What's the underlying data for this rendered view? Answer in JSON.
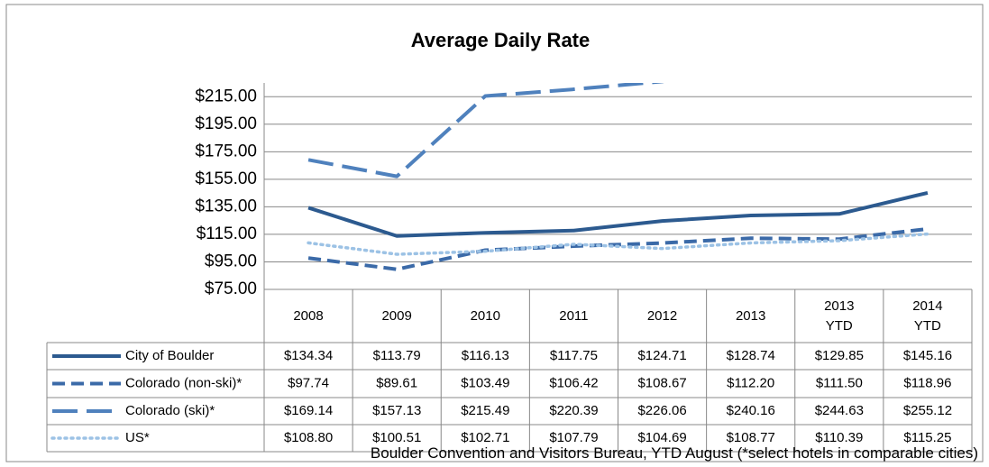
{
  "chart_data": {
    "type": "line",
    "title": "Average Daily Rate",
    "categories": [
      "2008",
      "2009",
      "2010",
      "2011",
      "2012",
      "2013",
      "2013\nYTD",
      "2014\nYTD"
    ],
    "ylim": [
      75,
      225
    ],
    "yticks": [
      {
        "value": 75,
        "label": "$75.00"
      },
      {
        "value": 95,
        "label": "$95.00"
      },
      {
        "value": 115,
        "label": "$115.00"
      },
      {
        "value": 135,
        "label": "$135.00"
      },
      {
        "value": 155,
        "label": "$155.00"
      },
      {
        "value": 175,
        "label": "$175.00"
      },
      {
        "value": 195,
        "label": "$195.00"
      },
      {
        "value": 215,
        "label": "$215.00"
      }
    ],
    "grid": true,
    "series": [
      {
        "name": "City of Boulder",
        "color": "#2c5a8f",
        "dash": "solid",
        "values": [
          134.34,
          113.79,
          116.13,
          117.75,
          124.71,
          128.74,
          129.85,
          145.16
        ],
        "value_labels": [
          "$134.34",
          "$113.79",
          "$116.13",
          "$117.75",
          "$124.71",
          "$128.74",
          "$129.85",
          "$145.16"
        ]
      },
      {
        "name": "Colorado (non-ski)*",
        "color": "#3b6aa8",
        "dash": "dash",
        "values": [
          97.74,
          89.61,
          103.49,
          106.42,
          108.67,
          112.2,
          111.5,
          118.96
        ],
        "value_labels": [
          "$97.74",
          "$89.61",
          "$103.49",
          "$106.42",
          "$108.67",
          "$112.20",
          "$111.50",
          "$118.96"
        ]
      },
      {
        "name": "Colorado (ski)*",
        "color": "#4f81bd",
        "dash": "longdash",
        "values": [
          169.14,
          157.13,
          215.49,
          220.39,
          226.06,
          240.16,
          244.63,
          255.12
        ],
        "value_labels": [
          "$169.14",
          "$157.13",
          "$215.49",
          "$220.39",
          "$226.06",
          "$240.16",
          "$244.63",
          "$255.12"
        ]
      },
      {
        "name": "US*",
        "color": "#9cc2e5",
        "dash": "dot",
        "values": [
          108.8,
          100.51,
          102.71,
          107.79,
          104.69,
          108.77,
          110.39,
          115.25
        ],
        "value_labels": [
          "$108.80",
          "$100.51",
          "$102.71",
          "$107.79",
          "$104.69",
          "$108.77",
          "$110.39",
          "$115.25"
        ]
      }
    ],
    "footnote": "Boulder Convention and Visitors Bureau, YTD August (*select hotels in comparable cities)"
  }
}
